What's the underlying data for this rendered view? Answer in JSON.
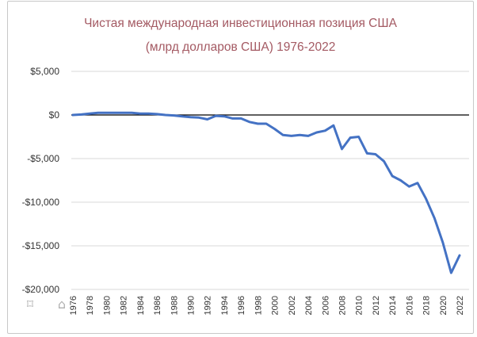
{
  "chart_data": {
    "type": "line",
    "title": [
      "Чистая международная инвестиционная позиция США",
      "(млрд долларов США) 1976-2022"
    ],
    "xlabel": "",
    "ylabel": "",
    "ylim": [
      -20000,
      5000
    ],
    "yticks": [
      5000,
      0,
      -5000,
      -10000,
      -15000,
      -20000
    ],
    "ytick_labels": [
      "$5,000",
      "$0",
      "-$5,000",
      "-$10,000",
      "-$15,000",
      "-$20,000"
    ],
    "xticks": [
      1976,
      1978,
      1980,
      1982,
      1984,
      1986,
      1988,
      1990,
      1992,
      1994,
      1996,
      1998,
      2000,
      2002,
      2004,
      2006,
      2008,
      2010,
      2012,
      2014,
      2016,
      2018,
      2020,
      2022
    ],
    "grid": "horizontal",
    "line_color": "#4472c4",
    "zero_line_color": "#000000",
    "series": [
      {
        "x": [
          1976,
          1977,
          1978,
          1979,
          1980,
          1981,
          1982,
          1983,
          1984,
          1985,
          1986,
          1987,
          1988,
          1989,
          1990,
          1991,
          1992,
          1993,
          1994,
          1995,
          1996,
          1997,
          1998,
          1999,
          2000,
          2001,
          2002,
          2003,
          2004,
          2005,
          2006,
          2007,
          2008,
          2009,
          2010,
          2011,
          2012,
          2013,
          2014,
          2015,
          2016,
          2017,
          2018,
          2019,
          2020,
          2021,
          2022
        ],
        "values": [
          0,
          50,
          150,
          250,
          250,
          250,
          250,
          250,
          150,
          150,
          100,
          0,
          -50,
          -150,
          -250,
          -300,
          -500,
          -100,
          -150,
          -400,
          -400,
          -800,
          -1000,
          -1000,
          -1600,
          -2300,
          -2400,
          -2300,
          -2400,
          -2000,
          -1800,
          -1200,
          -3900,
          -2600,
          -2500,
          -4400,
          -4500,
          -5300,
          -7000,
          -7500,
          -8200,
          -7800,
          -9600,
          -11800,
          -14600,
          -18100,
          -16100
        ]
      }
    ]
  },
  "icons": {
    "bookmark": "bookmark-icon",
    "home": "home-icon"
  }
}
